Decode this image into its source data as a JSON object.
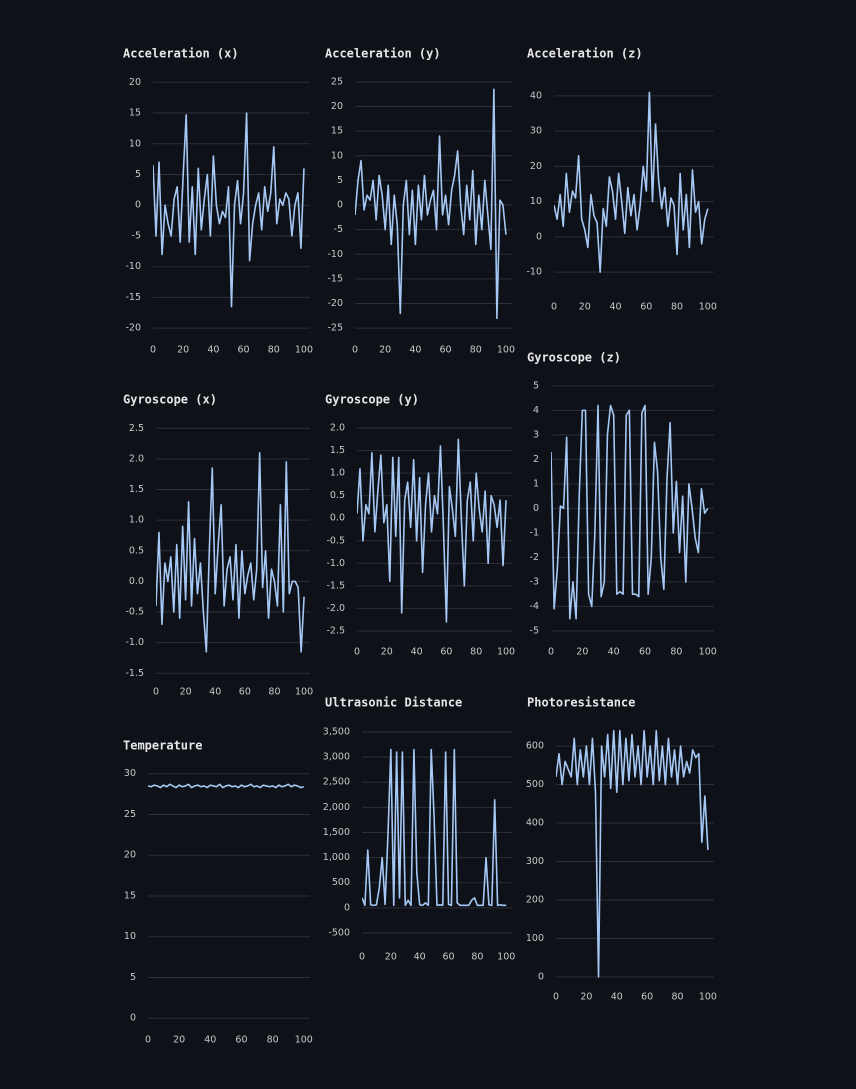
{
  "chart_data": [
    {
      "type": "line",
      "title": "Acceleration (x)",
      "color": "#a6c8f5",
      "grid": true,
      "x": [
        0,
        2,
        4,
        6,
        8,
        10,
        12,
        14,
        16,
        18,
        20,
        22,
        24,
        26,
        28,
        30,
        32,
        34,
        36,
        38,
        40,
        42,
        44,
        46,
        48,
        50,
        52,
        54,
        56,
        58,
        60,
        62,
        64,
        66,
        68,
        70,
        72,
        74,
        76,
        78,
        80,
        82,
        84,
        86,
        88,
        90,
        92,
        94,
        96,
        98,
        100
      ],
      "values": [
        6.5,
        -5,
        7,
        -8,
        0,
        -3,
        -5,
        1,
        3,
        -6,
        5,
        14.7,
        -6,
        3,
        -8,
        6,
        -4,
        1,
        5,
        -5,
        8,
        0,
        -3,
        -1,
        -2,
        3,
        -16.5,
        0,
        4,
        -3,
        2,
        15,
        -9,
        -3,
        0,
        2,
        -4,
        3,
        -1,
        2,
        9.5,
        -3,
        1,
        0,
        2,
        1,
        -5,
        0,
        2,
        -7,
        6
      ],
      "xlim": [
        0,
        104
      ],
      "xticks": [
        0,
        20,
        40,
        60,
        80,
        100
      ],
      "ylim": [
        -21.6,
        20.7
      ],
      "yticks": [
        20,
        15,
        10,
        5,
        0,
        -5,
        -10,
        -15,
        -20
      ]
    },
    {
      "type": "line",
      "title": "Acceleration (y)",
      "color": "#a6c8f5",
      "grid": true,
      "x": [
        0,
        2,
        4,
        6,
        8,
        10,
        12,
        14,
        16,
        18,
        20,
        22,
        24,
        26,
        28,
        30,
        32,
        34,
        36,
        38,
        40,
        42,
        44,
        46,
        48,
        50,
        52,
        54,
        56,
        58,
        60,
        62,
        64,
        66,
        68,
        70,
        72,
        74,
        76,
        78,
        80,
        82,
        84,
        86,
        88,
        90,
        92,
        94,
        96,
        98,
        100
      ],
      "values": [
        -2,
        5,
        9,
        -1,
        2,
        1,
        5,
        -3,
        6,
        2,
        -5,
        4,
        -8,
        2,
        -4,
        -22,
        0,
        5,
        -6,
        3,
        -8,
        4,
        -3,
        6,
        -2,
        1,
        3,
        -5,
        14,
        -2,
        2,
        -4,
        3,
        6,
        11,
        0,
        -6,
        4,
        -3,
        7,
        -8,
        2,
        -5,
        5,
        -2,
        -9,
        23.5,
        -23,
        1,
        0,
        -6
      ],
      "xlim": [
        0,
        104
      ],
      "xticks": [
        0,
        20,
        40,
        60,
        80,
        100
      ],
      "ylim": [
        -27,
        25.8
      ],
      "yticks": [
        25,
        20,
        15,
        10,
        5,
        0,
        -5,
        -10,
        -15,
        -20,
        -25
      ]
    },
    {
      "type": "line",
      "title": "Acceleration (z)",
      "color": "#a6c8f5",
      "grid": true,
      "x": [
        0,
        2,
        4,
        6,
        8,
        10,
        12,
        14,
        16,
        18,
        20,
        22,
        24,
        26,
        28,
        30,
        32,
        34,
        36,
        38,
        40,
        42,
        44,
        46,
        48,
        50,
        52,
        54,
        56,
        58,
        60,
        62,
        64,
        66,
        68,
        70,
        72,
        74,
        76,
        78,
        80,
        82,
        84,
        86,
        88,
        90,
        92,
        94,
        96,
        98,
        100
      ],
      "values": [
        9,
        5,
        12,
        3,
        18,
        7,
        13,
        11,
        23,
        5,
        2,
        -3,
        12,
        6,
        4,
        -10,
        8,
        3,
        17,
        13,
        5,
        18,
        10,
        1,
        14,
        6,
        12,
        2,
        9,
        20,
        13,
        41,
        10,
        32,
        16,
        8,
        14,
        3,
        11,
        9,
        -5,
        18,
        2,
        12,
        -3,
        19,
        7,
        10,
        -2,
        5,
        8
      ],
      "xlim": [
        0,
        104
      ],
      "xticks": [
        0,
        20,
        40,
        60,
        80,
        100
      ],
      "ylim": [
        -16.5,
        43.1
      ],
      "yticks": [
        40,
        30,
        20,
        10,
        0,
        -10
      ]
    },
    {
      "type": "line",
      "title": "Gyroscope (x)",
      "color": "#a6c8f5",
      "grid": true,
      "x": [
        0,
        2,
        4,
        6,
        8,
        10,
        12,
        14,
        16,
        18,
        20,
        22,
        24,
        26,
        28,
        30,
        32,
        34,
        36,
        38,
        40,
        42,
        44,
        46,
        48,
        50,
        52,
        54,
        56,
        58,
        60,
        62,
        64,
        66,
        68,
        70,
        72,
        74,
        76,
        78,
        80,
        82,
        84,
        86,
        88,
        90,
        92,
        94,
        96,
        98,
        100
      ],
      "values": [
        -0.4,
        0.8,
        -0.7,
        0.3,
        0,
        0.4,
        -0.5,
        0.6,
        -0.6,
        0.9,
        -0.3,
        1.3,
        -0.4,
        0.7,
        -0.2,
        0.3,
        -0.5,
        -1.15,
        0.5,
        1.85,
        -0.2,
        0.6,
        1.25,
        -0.4,
        0.2,
        0.4,
        -0.3,
        0.6,
        -0.6,
        0.5,
        -0.2,
        0.1,
        0.3,
        -0.3,
        0.2,
        2.1,
        -0.1,
        0.5,
        -0.6,
        0.2,
        0,
        -0.4,
        1.25,
        -0.5,
        1.95,
        -0.2,
        0,
        0,
        -0.1,
        -1.15,
        -0.25
      ],
      "xlim": [
        0,
        104
      ],
      "xticks": [
        0,
        20,
        40,
        60,
        80,
        100
      ],
      "ylim": [
        -1.61,
        2.57
      ],
      "yticks": [
        2.5,
        {
          "value": 2,
          "label": "2.0"
        },
        1.5,
        {
          "value": 1,
          "label": "1.0"
        },
        0.5,
        {
          "value": 0,
          "label": "0.0"
        },
        -0.5,
        {
          "value": -1,
          "label": "-1.0"
        },
        -1.5
      ]
    },
    {
      "type": "line",
      "title": "Gyroscope (y)",
      "color": "#a6c8f5",
      "grid": true,
      "x": [
        0,
        2,
        4,
        6,
        8,
        10,
        12,
        14,
        16,
        18,
        20,
        22,
        24,
        26,
        28,
        30,
        32,
        34,
        36,
        38,
        40,
        42,
        44,
        46,
        48,
        50,
        52,
        54,
        56,
        58,
        60,
        62,
        64,
        66,
        68,
        70,
        72,
        74,
        76,
        78,
        80,
        82,
        84,
        86,
        88,
        90,
        92,
        94,
        96,
        98,
        100
      ],
      "values": [
        0.1,
        1.1,
        -0.5,
        0.3,
        0.1,
        1.45,
        -0.3,
        0.6,
        1.4,
        -0.1,
        0.3,
        -1.4,
        1.35,
        -0.4,
        1.35,
        -2.1,
        0.4,
        0.8,
        -0.2,
        1.3,
        -0.5,
        0.9,
        -1.2,
        0.3,
        1,
        -0.3,
        0.5,
        0.1,
        1.6,
        -0.2,
        -2.3,
        0.7,
        0.2,
        -0.4,
        1.75,
        0,
        -1.5,
        0.4,
        0.8,
        -0.5,
        1,
        0.2,
        -0.3,
        0.6,
        -1,
        0.5,
        0.3,
        -0.2,
        0.4,
        -1.05,
        0.4
      ],
      "xlim": [
        0,
        104
      ],
      "xticks": [
        0,
        20,
        40,
        60,
        80,
        100
      ],
      "ylim": [
        -2.7,
        2.09
      ],
      "yticks": [
        {
          "value": 2,
          "label": "2.0"
        },
        1.5,
        {
          "value": 1,
          "label": "1.0"
        },
        0.5,
        {
          "value": 0,
          "label": "0.0"
        },
        -0.5,
        {
          "value": -1,
          "label": "-1.0"
        },
        -1.5,
        {
          "value": -2,
          "label": "-2.0"
        },
        -2.5
      ]
    },
    {
      "type": "line",
      "title": "Gyroscope (z)",
      "color": "#a6c8f5",
      "grid": true,
      "x": [
        0,
        2,
        4,
        6,
        8,
        10,
        12,
        14,
        16,
        18,
        20,
        22,
        24,
        26,
        28,
        30,
        32,
        34,
        36,
        38,
        40,
        42,
        44,
        46,
        48,
        50,
        52,
        54,
        56,
        58,
        60,
        62,
        64,
        66,
        68,
        70,
        72,
        74,
        76,
        78,
        80,
        82,
        84,
        86,
        88,
        90,
        92,
        94,
        96,
        98,
        100
      ],
      "values": [
        2.3,
        -4.1,
        -2.5,
        0.1,
        0,
        2.9,
        -4.5,
        -3,
        -4.5,
        0.5,
        4,
        4,
        -3.5,
        -4,
        -1,
        4.2,
        -3.6,
        -3,
        3,
        4.2,
        3.8,
        -3.5,
        -3.4,
        -3.5,
        3.8,
        4,
        -3.5,
        -3.5,
        -3.6,
        3.9,
        4.2,
        -3.5,
        -2,
        2.7,
        1.5,
        -2,
        -3.3,
        1.2,
        3.5,
        -1,
        1.1,
        -1.8,
        0.5,
        -3,
        1,
        0,
        -1.2,
        -1.8,
        0.8,
        -0.2,
        0
      ],
      "xlim": [
        0,
        104
      ],
      "xticks": [
        0,
        20,
        40,
        60,
        80,
        100
      ],
      "ylim": [
        -5.37,
        5.24
      ],
      "yticks": [
        5,
        4,
        3,
        2,
        1,
        0,
        -1,
        -2,
        -3,
        -4,
        -5
      ]
    },
    {
      "type": "line",
      "title": "Temperature",
      "color": "#a6c8f5",
      "grid": true,
      "x": [
        0,
        2,
        4,
        6,
        8,
        10,
        12,
        14,
        16,
        18,
        20,
        22,
        24,
        26,
        28,
        30,
        32,
        34,
        36,
        38,
        40,
        42,
        44,
        46,
        48,
        50,
        52,
        54,
        56,
        58,
        60,
        62,
        64,
        66,
        68,
        70,
        72,
        74,
        76,
        78,
        80,
        82,
        84,
        86,
        88,
        90,
        92,
        94,
        96,
        98,
        100
      ],
      "values": [
        28.5,
        28.4,
        28.6,
        28.5,
        28.3,
        28.6,
        28.4,
        28.7,
        28.5,
        28.3,
        28.6,
        28.4,
        28.5,
        28.7,
        28.3,
        28.5,
        28.6,
        28.4,
        28.5,
        28.3,
        28.6,
        28.5,
        28.4,
        28.7,
        28.3,
        28.5,
        28.6,
        28.4,
        28.5,
        28.3,
        28.6,
        28.4,
        28.5,
        28.7,
        28.4,
        28.5,
        28.3,
        28.6,
        28.5,
        28.4,
        28.5,
        28.3,
        28.6,
        28.4,
        28.5,
        28.7,
        28.4,
        28.6,
        28.5,
        28.3,
        28.4
      ],
      "xlim": [
        0,
        104
      ],
      "xticks": [
        0,
        20,
        40,
        60,
        80,
        100
      ],
      "ylim": [
        -1.2,
        30.7
      ],
      "yticks": [
        30,
        25,
        20,
        15,
        10,
        5,
        0
      ]
    },
    {
      "type": "line",
      "title": "Ultrasonic Distance",
      "color": "#a6c8f5",
      "grid": true,
      "x": [
        0,
        2,
        4,
        6,
        8,
        10,
        12,
        14,
        16,
        18,
        20,
        22,
        24,
        26,
        28,
        30,
        32,
        34,
        36,
        38,
        40,
        42,
        44,
        46,
        48,
        50,
        52,
        54,
        56,
        58,
        60,
        62,
        64,
        66,
        68,
        70,
        72,
        74,
        76,
        78,
        80,
        82,
        84,
        86,
        88,
        90,
        92,
        94,
        96,
        98,
        100
      ],
      "values": [
        200,
        50,
        1150,
        60,
        50,
        60,
        400,
        1000,
        70,
        1450,
        3150,
        50,
        3100,
        200,
        3100,
        50,
        150,
        50,
        3150,
        700,
        60,
        50,
        100,
        50,
        3150,
        1800,
        50,
        60,
        50,
        3100,
        70,
        50,
        3150,
        100,
        50,
        50,
        50,
        50,
        150,
        200,
        50,
        50,
        50,
        1000,
        60,
        50,
        2150,
        50,
        60,
        50,
        50
      ],
      "xlim": [
        0,
        104
      ],
      "xticks": [
        0,
        20,
        40,
        60,
        80,
        100
      ],
      "ylim": [
        -739,
        3619
      ],
      "yticks": [
        {
          "value": 3500,
          "label": "3,500"
        },
        {
          "value": 3000,
          "label": "3,000"
        },
        {
          "value": 2500,
          "label": "2,500"
        },
        {
          "value": 2000,
          "label": "2,000"
        },
        {
          "value": 1500,
          "label": "1,500"
        },
        {
          "value": 1000,
          "label": "1,000"
        },
        500,
        0,
        -500
      ]
    },
    {
      "type": "line",
      "title": "Photoresistance",
      "color": "#a6c8f5",
      "grid": true,
      "x": [
        0,
        2,
        4,
        6,
        8,
        10,
        12,
        14,
        16,
        18,
        20,
        22,
        24,
        26,
        28,
        30,
        32,
        34,
        36,
        38,
        40,
        42,
        44,
        46,
        48,
        50,
        52,
        54,
        56,
        58,
        60,
        62,
        64,
        66,
        68,
        70,
        72,
        74,
        76,
        78,
        80,
        82,
        84,
        86,
        88,
        90,
        92,
        94,
        96,
        98,
        100
      ],
      "values": [
        520,
        580,
        500,
        560,
        540,
        520,
        620,
        500,
        590,
        520,
        600,
        500,
        620,
        480,
        0,
        600,
        520,
        630,
        490,
        640,
        480,
        640,
        500,
        620,
        510,
        630,
        520,
        600,
        500,
        640,
        520,
        600,
        500,
        640,
        510,
        600,
        500,
        620,
        520,
        590,
        500,
        600,
        520,
        560,
        530,
        590,
        570,
        580,
        350,
        470,
        330
      ],
      "xlim": [
        0,
        104
      ],
      "xticks": [
        0,
        20,
        40,
        60,
        80,
        100
      ],
      "ylim": [
        -21,
        647
      ],
      "yticks": [
        600,
        500,
        400,
        300,
        200,
        100,
        0
      ]
    }
  ]
}
